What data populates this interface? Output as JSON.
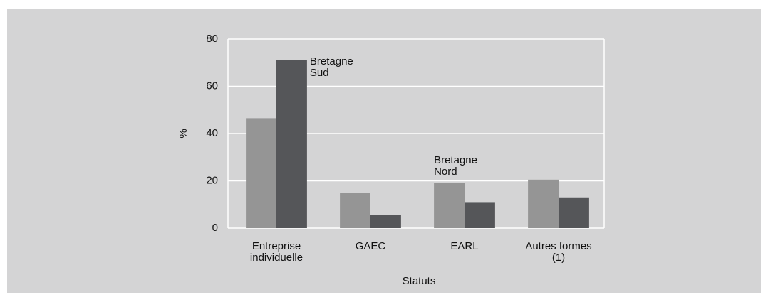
{
  "chart_data": {
    "type": "bar",
    "categories": [
      "Entreprise individuelle",
      "GAEC",
      "EARL",
      "Autres formes (1)"
    ],
    "series": [
      {
        "name": "Bretagne Nord",
        "color": "#959595",
        "values": [
          46.5,
          15,
          19,
          20.5
        ]
      },
      {
        "name": "Bretagne Sud",
        "color": "#555659",
        "values": [
          71,
          5.5,
          11,
          13
        ]
      }
    ],
    "ylabel": "%",
    "xlabel": "Statuts",
    "ylim": [
      0,
      80
    ],
    "yticks": [
      0,
      20,
      40,
      60,
      80
    ],
    "grid": true
  }
}
